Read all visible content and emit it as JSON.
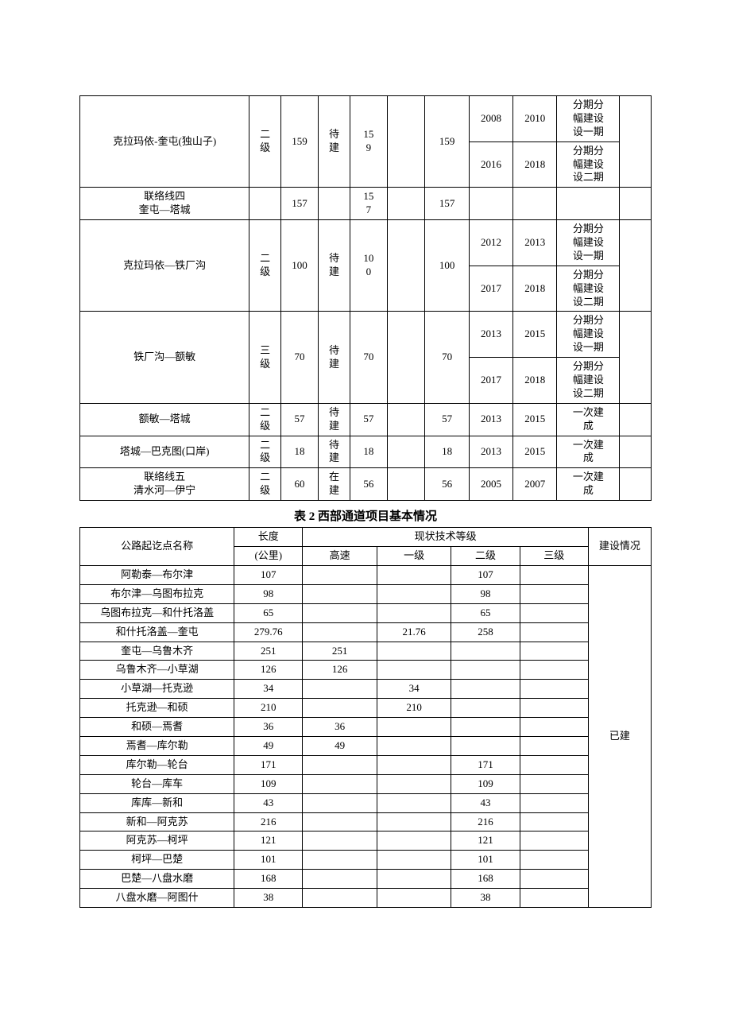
{
  "table1": {
    "rows": [
      {
        "name": "克拉玛依-奎屯(独山子)",
        "level": "二级",
        "len": "159",
        "status": "待建",
        "a": "159",
        "b": "",
        "c": "159",
        "sub": [
          {
            "y1": "2008",
            "y2": "2010",
            "note": "分期分幅建设一期"
          },
          {
            "y1": "2016",
            "y2": "2018",
            "note": "分期分幅建设二期"
          }
        ]
      },
      {
        "name": "联络线四\n奎屯—塔城",
        "level": "",
        "len": "157",
        "status": "",
        "a": "157",
        "b": "",
        "c": "157",
        "sub": [
          {
            "y1": "",
            "y2": "",
            "note": ""
          }
        ]
      },
      {
        "name": "克拉玛依—铁厂沟",
        "level": "二级",
        "len": "100",
        "status": "待建",
        "a": "100",
        "b": "",
        "c": "100",
        "sub": [
          {
            "y1": "2012",
            "y2": "2013",
            "note": "分期分幅建设一期"
          },
          {
            "y1": "2017",
            "y2": "2018",
            "note": "分期分幅建设二期"
          }
        ]
      },
      {
        "name": "铁厂沟—额敏",
        "level": "三级",
        "len": "70",
        "status": "待建",
        "a": "70",
        "b": "",
        "c": "70",
        "sub": [
          {
            "y1": "2013",
            "y2": "2015",
            "note": "分期分幅建设一期"
          },
          {
            "y1": "2017",
            "y2": "2018",
            "note": "分期分幅建设二期"
          }
        ]
      },
      {
        "name": "额敏—塔城",
        "level": "二级",
        "len": "57",
        "status": "待建",
        "a": "57",
        "b": "",
        "c": "57",
        "sub": [
          {
            "y1": "2013",
            "y2": "2015",
            "note": "一次建成"
          }
        ]
      },
      {
        "name": "塔城—巴克图(口岸)",
        "level": "二级",
        "len": "18",
        "status": "待建",
        "a": "18",
        "b": "",
        "c": "18",
        "sub": [
          {
            "y1": "2013",
            "y2": "2015",
            "note": "一次建成"
          }
        ]
      },
      {
        "name": "联络线五\n清水河—伊宁",
        "level": "二级",
        "len": "60",
        "status": "在建",
        "a": "56",
        "b": "",
        "c": "56",
        "sub": [
          {
            "y1": "2005",
            "y2": "2007",
            "note": "一次建成"
          }
        ]
      }
    ]
  },
  "table2": {
    "title": "表 2 西部通道项目基本情况",
    "headers": {
      "name": "公路起讫点名称",
      "length": "长度",
      "length_unit": "(公里)",
      "tech": "现状技术等级",
      "c1": "高速",
      "c2": "一级",
      "c3": "二级",
      "c4": "三级",
      "status": "建设情况"
    },
    "status_label": "已建",
    "rows": [
      {
        "name": "阿勒泰—布尔津",
        "len": "107",
        "c1": "",
        "c2": "",
        "c3": "107",
        "c4": ""
      },
      {
        "name": "布尔津—乌图布拉克",
        "len": "98",
        "c1": "",
        "c2": "",
        "c3": "98",
        "c4": ""
      },
      {
        "name": "乌图布拉克—和什托洛盖",
        "len": "65",
        "c1": "",
        "c2": "",
        "c3": "65",
        "c4": ""
      },
      {
        "name": "和什托洛盖—奎屯",
        "len": "279.76",
        "c1": "",
        "c2": "21.76",
        "c3": "258",
        "c4": ""
      },
      {
        "name": "奎屯—乌鲁木齐",
        "len": "251",
        "c1": "251",
        "c2": "",
        "c3": "",
        "c4": ""
      },
      {
        "name": "乌鲁木齐—小草湖",
        "len": "126",
        "c1": "126",
        "c2": "",
        "c3": "",
        "c4": ""
      },
      {
        "name": "小草湖—托克逊",
        "len": "34",
        "c1": "",
        "c2": "34",
        "c3": "",
        "c4": ""
      },
      {
        "name": "托克逊—和硕",
        "len": "210",
        "c1": "",
        "c2": "210",
        "c3": "",
        "c4": ""
      },
      {
        "name": "和硕—焉耆",
        "len": "36",
        "c1": "36",
        "c2": "",
        "c3": "",
        "c4": ""
      },
      {
        "name": "焉耆—库尔勒",
        "len": "49",
        "c1": "49",
        "c2": "",
        "c3": "",
        "c4": ""
      },
      {
        "name": "库尔勒—轮台",
        "len": "171",
        "c1": "",
        "c2": "",
        "c3": "171",
        "c4": ""
      },
      {
        "name": "轮台—库车",
        "len": "109",
        "c1": "",
        "c2": "",
        "c3": "109",
        "c4": ""
      },
      {
        "name": "库库—新和",
        "len": "43",
        "c1": "",
        "c2": "",
        "c3": "43",
        "c4": ""
      },
      {
        "name": "新和—阿克苏",
        "len": "216",
        "c1": "",
        "c2": "",
        "c3": "216",
        "c4": ""
      },
      {
        "name": "阿克苏—柯坪",
        "len": "121",
        "c1": "",
        "c2": "",
        "c3": "121",
        "c4": ""
      },
      {
        "name": "柯坪—巴楚",
        "len": "101",
        "c1": "",
        "c2": "",
        "c3": "101",
        "c4": ""
      },
      {
        "name": "巴楚—八盘水磨",
        "len": "168",
        "c1": "",
        "c2": "",
        "c3": "168",
        "c4": ""
      },
      {
        "name": "八盘水磨—阿图什",
        "len": "38",
        "c1": "",
        "c2": "",
        "c3": "38",
        "c4": ""
      }
    ]
  }
}
